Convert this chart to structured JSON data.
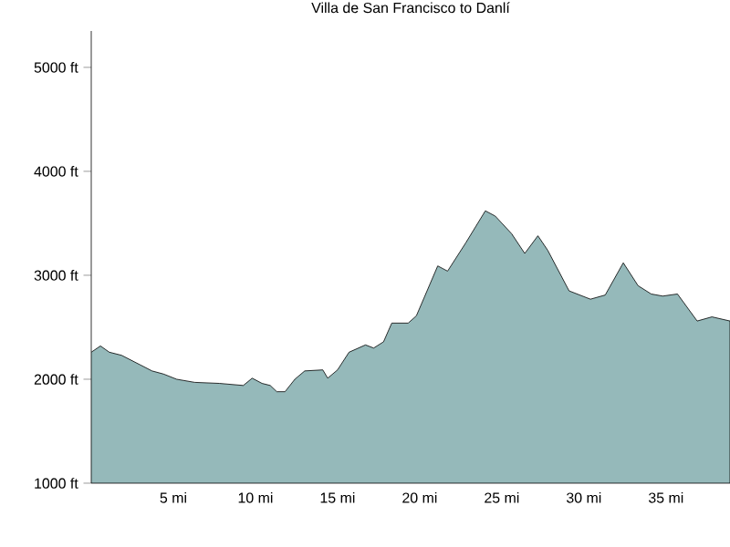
{
  "chart_data": {
    "type": "area",
    "title": "Villa de San Francisco to Danlí",
    "x": [
      0,
      0.56,
      1.1,
      1.85,
      2.96,
      3.7,
      4.4,
      5.2,
      6.3,
      7.8,
      9.26,
      9.8,
      10.4,
      10.9,
      11.3,
      11.8,
      12.4,
      13.0,
      14.1,
      14.4,
      15.0,
      15.7,
      16.7,
      17.2,
      17.8,
      18.3,
      19.3,
      19.8,
      21.1,
      21.7,
      22.8,
      24.0,
      24.6,
      25.6,
      26.4,
      27.2,
      27.8,
      29.1,
      30.4,
      31.3,
      32.4,
      33.3,
      34.1,
      34.8,
      35.7,
      36.9,
      37.8,
      38.9
    ],
    "series": [
      {
        "color": "#95b9ba",
        "values": [
          2260,
          2320,
          2260,
          2230,
          2140,
          2080,
          2050,
          2000,
          1970,
          1960,
          1940,
          2010,
          1960,
          1940,
          1880,
          1880,
          2000,
          2080,
          2090,
          2010,
          2090,
          2260,
          2330,
          2300,
          2360,
          2540,
          2540,
          2610,
          3090,
          3040,
          3310,
          3620,
          3570,
          3400,
          3210,
          3380,
          3240,
          2850,
          2770,
          2810,
          3120,
          2900,
          2820,
          2800,
          2820,
          2560,
          2600,
          2560
        ]
      }
    ],
    "xlim": [
      0,
      38.9
    ],
    "ylim": [
      1000,
      5350
    ],
    "xticks": [
      {
        "value": 5,
        "label": "5 mi"
      },
      {
        "value": 10,
        "label": "10 mi"
      },
      {
        "value": 15,
        "label": "15 mi"
      },
      {
        "value": 20,
        "label": "20 mi"
      },
      {
        "value": 25,
        "label": "25 mi"
      },
      {
        "value": 30,
        "label": "30 mi"
      },
      {
        "value": 35,
        "label": "35 mi"
      }
    ],
    "yticks": [
      {
        "value": 1000,
        "label": "1000 ft"
      },
      {
        "value": 2000,
        "label": "2000 ft"
      },
      {
        "value": 3000,
        "label": "3000 ft"
      },
      {
        "value": 4000,
        "label": "4000 ft"
      },
      {
        "value": 5000,
        "label": "5000 ft"
      }
    ],
    "grid": false
  }
}
